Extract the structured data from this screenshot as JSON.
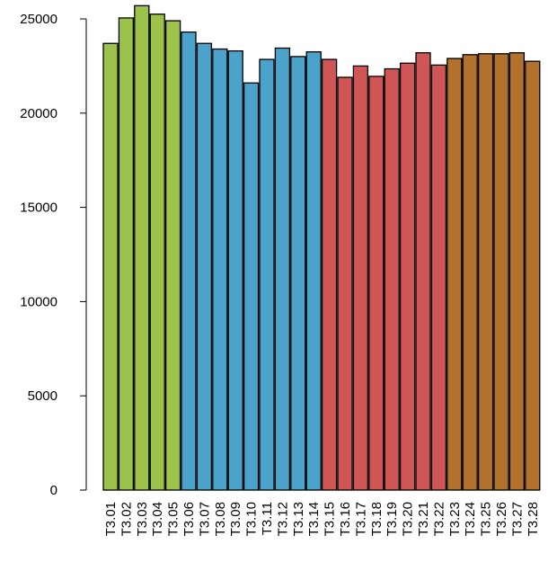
{
  "chart_data": {
    "type": "bar",
    "title": "",
    "xlabel": "",
    "ylabel": "",
    "ylim": [
      0,
      25000
    ],
    "yticks": [
      0,
      5000,
      10000,
      15000,
      20000,
      25000
    ],
    "ytick_labels": [
      "0",
      "5000",
      "10000",
      "15000",
      "20000",
      "25000"
    ],
    "grid": false,
    "categories": [
      "T3.01",
      "T3.02",
      "T3.03",
      "T3.04",
      "T3.05",
      "T3.06",
      "T3.07",
      "T3.08",
      "T3.09",
      "T3.10",
      "T3.11",
      "T3.12",
      "T3.13",
      "T3.14",
      "T3.15",
      "T3.16",
      "T3.17",
      "T3.18",
      "T3.19",
      "T3.20",
      "T3.21",
      "T3.22",
      "T3.23",
      "T3.24",
      "T3.25",
      "T3.26",
      "T3.27",
      "T3.28"
    ],
    "values": [
      23700,
      25050,
      25700,
      25250,
      24900,
      24300,
      23700,
      23400,
      23300,
      21600,
      22850,
      23450,
      23000,
      23250,
      22850,
      21900,
      22500,
      21950,
      22350,
      22650,
      23200,
      22550,
      22900,
      23100,
      23150,
      23150,
      23200,
      22750
    ],
    "bar_colors": [
      "#9bc24b",
      "#9bc24b",
      "#9bc24b",
      "#9bc24b",
      "#9bc24b",
      "#4ba2cb",
      "#4ba2cb",
      "#4ba2cb",
      "#4ba2cb",
      "#4ba2cb",
      "#4ba2cb",
      "#4ba2cb",
      "#4ba2cb",
      "#4ba2cb",
      "#d05656",
      "#d05656",
      "#d05656",
      "#d05656",
      "#d05656",
      "#d05656",
      "#d05656",
      "#d05656",
      "#b3712e",
      "#b3712e",
      "#b3712e",
      "#b3712e",
      "#b3712e",
      "#b3712e"
    ]
  }
}
